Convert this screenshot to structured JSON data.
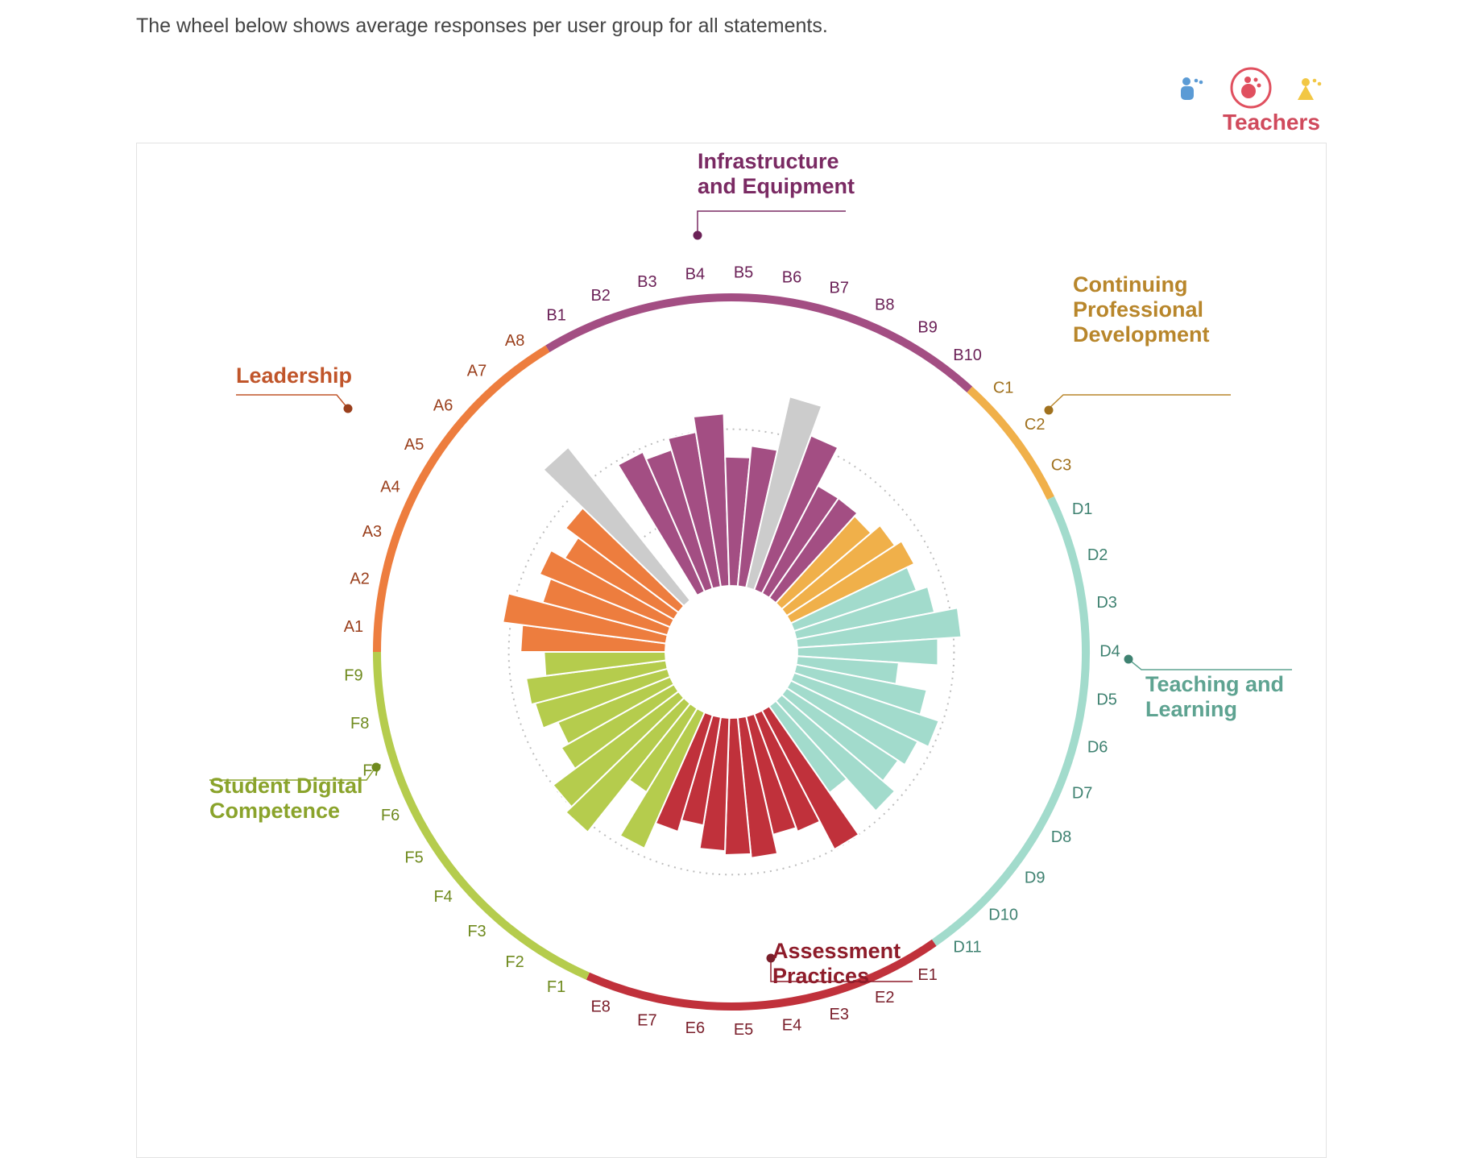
{
  "intro": "The wheel below shows average responses per user group for all statements.",
  "user_groups": [
    {
      "icon": "school-leaders-icon",
      "color": "#5b9bd5",
      "selected": false
    },
    {
      "icon": "teachers-icon",
      "color": "#e0505f",
      "selected": true
    },
    {
      "icon": "students-icon",
      "color": "#f2c744",
      "selected": false
    }
  ],
  "selected_group_label": "Teachers",
  "chart_data": {
    "type": "bar",
    "layout": "radial",
    "title": "",
    "rmax": 5,
    "grid": {
      "dotted_rings": [
        2,
        4
      ]
    },
    "categories": [
      {
        "key": "A",
        "name": "Leadership",
        "color": "#ed7d3e",
        "label_color": "#c0552a",
        "dark_color": "#9a3f1c",
        "statements": [
          "A1",
          "A2",
          "A3",
          "A4",
          "A5",
          "A6",
          "A7",
          "A8"
        ],
        "values": [
          3.7,
          4.2,
          3.3,
          3.6,
          3.2,
          3.6,
          4.0,
          null
        ],
        "not_applicable": [
          "A7"
        ]
      },
      {
        "key": "B",
        "name": "Infrastructure and Equipment",
        "color": "#a34e83",
        "label_color": "#7a2a63",
        "dark_color": "#6b2157",
        "statements": [
          "B1",
          "B2",
          "B3",
          "B4",
          "B5",
          "B6",
          "B7",
          "B8",
          "B9",
          "B10"
        ],
        "values": [
          3.9,
          3.7,
          4.0,
          4.4,
          3.3,
          3.6,
          4.8,
          4.2,
          3.1,
          3.1
        ],
        "not_applicable": [
          "B7"
        ]
      },
      {
        "key": "C",
        "name": "Continuing Professional Development",
        "color": "#f0b04a",
        "label_color": "#b8862b",
        "dark_color": "#a0711e",
        "statements": [
          "C1",
          "C2",
          "C3"
        ],
        "values": [
          3.0,
          3.3,
          3.5
        ],
        "not_applicable": []
      },
      {
        "key": "D",
        "name": "Teaching and Learning",
        "color": "#a2dbcc",
        "label_color": "#5ea391",
        "dark_color": "#3f8271",
        "statements": [
          "D1",
          "D2",
          "D3",
          "D4",
          "D5",
          "D6",
          "D7",
          "D8",
          "D9",
          "D10",
          "D11"
        ],
        "values": [
          3.3,
          3.6,
          4.2,
          3.6,
          2.6,
          3.4,
          3.9,
          3.6,
          3.4,
          3.8,
          2.7
        ],
        "not_applicable": []
      },
      {
        "key": "E",
        "name": "Assessment Practices",
        "color": "#c0313b",
        "label_color": "#8e1c2a",
        "dark_color": "#7a1f2b",
        "statements": [
          "E1",
          "E2",
          "E3",
          "E4",
          "E5",
          "E6",
          "E7",
          "E8"
        ],
        "values": [
          4.0,
          3.2,
          3.1,
          3.6,
          3.5,
          3.4,
          2.8,
          3.1
        ],
        "not_applicable": []
      },
      {
        "key": "F",
        "name": "Student Digital Competence",
        "color": "#b5cc4d",
        "label_color": "#8aa32b",
        "dark_color": "#6f8a1e",
        "statements": [
          "F1",
          "F2",
          "F3",
          "F4",
          "F5",
          "F6",
          "F7",
          "F8",
          "F9"
        ],
        "values": [
          3.8,
          2.5,
          4.2,
          4.0,
          3.3,
          3.1,
          3.5,
          3.6,
          3.1
        ],
        "not_applicable": []
      }
    ],
    "not_applicable_color": "#cccccc"
  }
}
